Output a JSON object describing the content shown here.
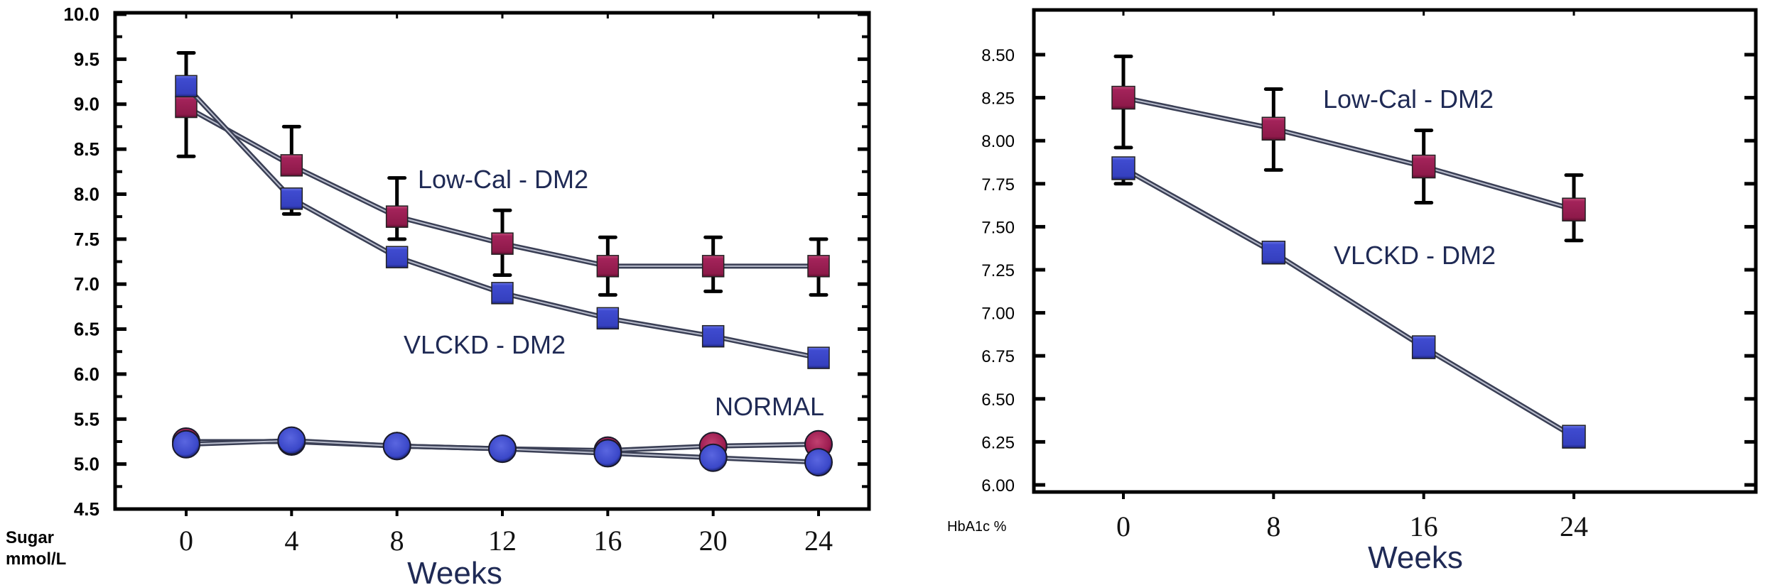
{
  "chart_data": [
    {
      "type": "line",
      "title": "",
      "xlabel": "Weeks",
      "ylabel": "Sugar mmol/L",
      "ylabel_lines": [
        "Sugar",
        "mmol/L"
      ],
      "x": [
        0,
        4,
        8,
        12,
        16,
        20,
        24
      ],
      "x_tick_labels": [
        "0",
        "4",
        "8",
        "12",
        "16",
        "20",
        "24"
      ],
      "xlim": [
        -2.5,
        28.5
      ],
      "ylim": [
        4.5,
        10.0
      ],
      "y_ticks": [
        4.5,
        5.0,
        5.5,
        6.0,
        6.5,
        7.0,
        7.5,
        8.0,
        8.5,
        9.0,
        9.5,
        10.0
      ],
      "y_tick_labels": [
        "4.5",
        "5.0",
        "5.5",
        "6.0",
        "6.5",
        "7.0",
        "7.5",
        "8.0",
        "8.5",
        "9.0",
        "9.5",
        "10.0"
      ],
      "grid": false,
      "series": [
        {
          "name": "Low-Cal - DM2",
          "marker": "square",
          "color": "#9b1b4f",
          "values": [
            8.97,
            8.32,
            7.75,
            7.45,
            7.2,
            7.2,
            7.2
          ],
          "error_upper": [
            9.57,
            8.75,
            8.18,
            7.82,
            7.52,
            7.52,
            7.5
          ],
          "error_lower": [
            8.42,
            null,
            7.5,
            7.1,
            6.88,
            6.92,
            6.88
          ]
        },
        {
          "name": "VLCKD - DM2",
          "marker": "square",
          "color": "#3a47c8",
          "values": [
            9.2,
            7.95,
            7.3,
            6.9,
            6.62,
            6.42,
            6.18
          ],
          "error_upper": [
            null,
            null,
            null,
            null,
            null,
            null,
            null
          ],
          "error_lower": [
            null,
            7.78,
            null,
            null,
            null,
            null,
            null
          ]
        },
        {
          "name": "NORMAL (Low-Cal)",
          "marker": "circle",
          "color": "#9b1b4f",
          "values": [
            5.25,
            5.25,
            5.2,
            5.17,
            5.15,
            5.2,
            5.22
          ]
        },
        {
          "name": "NORMAL (VLCKD)",
          "marker": "circle",
          "color": "#3a47c8",
          "values": [
            5.22,
            5.26,
            5.2,
            5.17,
            5.12,
            5.07,
            5.02
          ]
        }
      ],
      "annotations": [
        "Low-Cal - DM2",
        "VLCKD - DM2",
        "NORMAL"
      ]
    },
    {
      "type": "line",
      "title": "",
      "xlabel": "Weeks",
      "ylabel": "HbA1c %",
      "x": [
        0,
        8,
        16,
        24
      ],
      "x_tick_labels": [
        "0",
        "8",
        "16",
        "24"
      ],
      "xlim": [
        -4,
        28
      ],
      "ylim": [
        5.95,
        8.72
      ],
      "y_ticks": [
        6.0,
        6.25,
        6.5,
        6.75,
        7.0,
        7.25,
        7.5,
        7.75,
        8.0,
        8.25,
        8.5
      ],
      "y_tick_labels": [
        "6.00",
        "6.25",
        "6.50",
        "6.75",
        "7.00",
        "7.25",
        "7.50",
        "7.75",
        "8.00",
        "8.25",
        "8.50"
      ],
      "grid": false,
      "series": [
        {
          "name": "Low-Cal - DM2",
          "marker": "square",
          "color": "#9b1b4f",
          "values": [
            8.25,
            8.07,
            7.85,
            7.6
          ],
          "error_upper": [
            8.49,
            8.3,
            8.06,
            7.8
          ],
          "error_lower": [
            7.96,
            7.83,
            7.64,
            7.42
          ]
        },
        {
          "name": "VLCKD - DM2",
          "marker": "square",
          "color": "#3a47c8",
          "values": [
            7.84,
            7.35,
            6.8,
            6.28
          ],
          "error_upper": [
            null,
            null,
            null,
            null
          ],
          "error_lower": [
            7.75,
            null,
            null,
            null
          ]
        }
      ],
      "annotations": [
        "Low-Cal - DM2",
        "VLCKD - DM2"
      ]
    }
  ]
}
